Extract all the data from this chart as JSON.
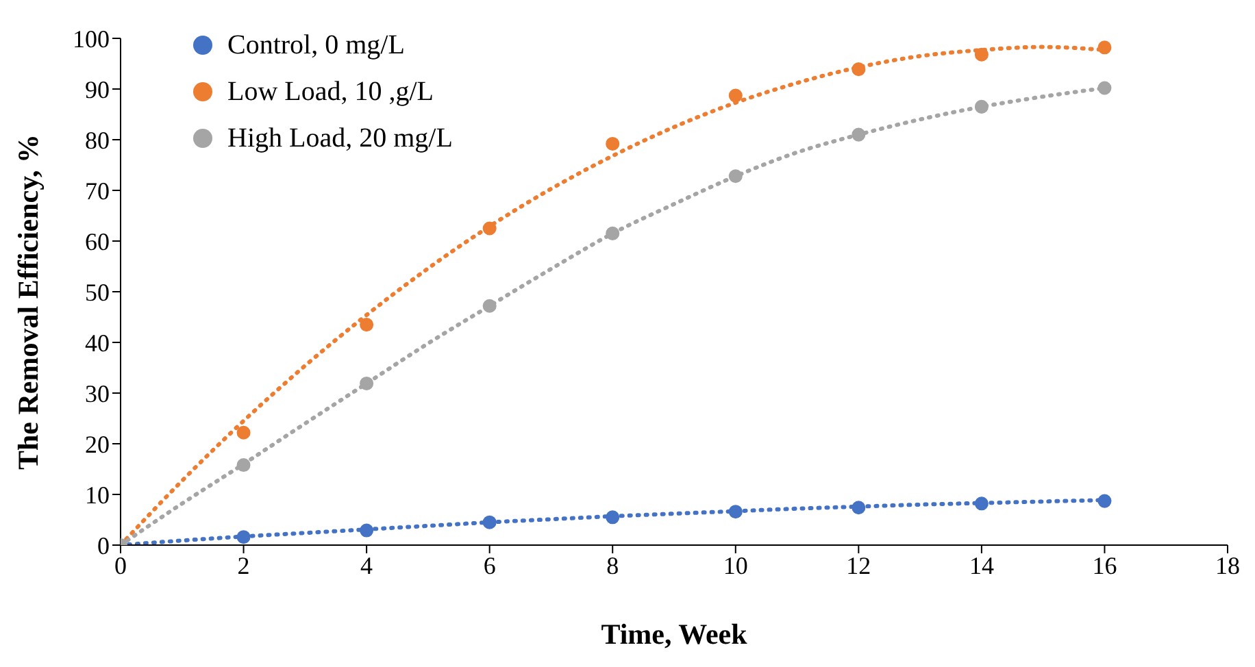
{
  "chart_data": {
    "type": "scatter",
    "xlabel": "Time, Week",
    "ylabel": "The Removal Efficiency, %",
    "xlim": [
      0,
      18
    ],
    "xticks": [
      0,
      2,
      4,
      6,
      8,
      10,
      12,
      14,
      16,
      18
    ],
    "ylim": [
      0,
      100
    ],
    "yticks": [
      0,
      10,
      20,
      30,
      40,
      50,
      60,
      70,
      80,
      90,
      100
    ],
    "grid": false,
    "legend": "top left",
    "marker": "circle",
    "series": [
      {
        "name": "Control, 0 mg/L",
        "color": "#4472c4",
        "x": [
          2,
          4,
          6,
          8,
          10,
          12,
          14,
          16
        ],
        "values": [
          1.6,
          2.9,
          4.5,
          5.5,
          6.6,
          7.4,
          8.2,
          8.7
        ]
      },
      {
        "name": "Low Load, 10 ,g/L",
        "color": "#ed7d31",
        "x": [
          2,
          4,
          6,
          8,
          10,
          12,
          14,
          16
        ],
        "values": [
          22.2,
          43.5,
          62.5,
          79.2,
          88.7,
          93.9,
          96.8,
          98.2
        ]
      },
      {
        "name": "High Load, 20 mg/L",
        "color": "#a5a5a5",
        "x": [
          0,
          2,
          4,
          6,
          8,
          10,
          12,
          14,
          16
        ],
        "values": [
          0,
          15.8,
          31.9,
          47.2,
          61.5,
          72.8,
          81,
          86.5,
          90.2
        ]
      },
      {
        "type": "line",
        "line_style": "dotted",
        "marker": "none",
        "color": "#4472c4",
        "x": [
          0,
          1,
          2,
          3,
          4,
          5,
          6,
          7,
          8,
          9,
          10,
          11,
          12,
          13,
          14,
          15,
          16
        ],
        "values": [
          0,
          0.9,
          1.7,
          2.4,
          3.1,
          3.8,
          4.5,
          5.1,
          5.7,
          6.2,
          6.7,
          7.2,
          7.6,
          8,
          8.3,
          8.6,
          8.9
        ]
      },
      {
        "type": "line",
        "line_style": "dotted",
        "marker": "none",
        "color": "#ed7d31",
        "x": [
          0,
          1,
          2,
          3,
          4,
          5,
          6,
          7,
          8,
          9,
          10,
          11,
          12,
          13,
          14,
          15,
          16
        ],
        "values": [
          0,
          12.7,
          24.5,
          35.4,
          45.4,
          54.6,
          62.9,
          70.3,
          76.8,
          82.5,
          87.3,
          91.2,
          94.3,
          96.5,
          97.7,
          98.3,
          97.7
        ]
      },
      {
        "type": "line",
        "line_style": "dotted",
        "marker": "none",
        "color": "#a5a5a5",
        "x": [
          0,
          1,
          2,
          3,
          4,
          5,
          6,
          7,
          8,
          9,
          10,
          11,
          12,
          13,
          14,
          15,
          16
        ],
        "values": [
          0,
          8.2,
          16,
          24,
          31.9,
          39.8,
          47.2,
          54.5,
          61.5,
          67.3,
          72.8,
          77.5,
          81,
          84,
          86.5,
          88.5,
          90.2
        ]
      }
    ]
  }
}
